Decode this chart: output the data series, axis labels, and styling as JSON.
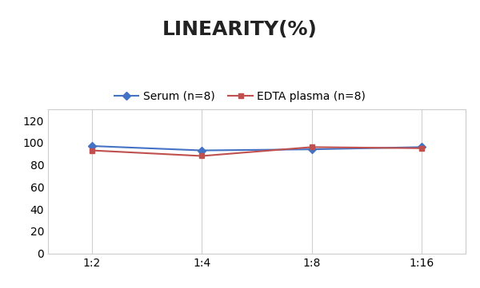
{
  "title": "LINEARITY(%)",
  "x_labels": [
    "1:2",
    "1:4",
    "1:8",
    "1:16"
  ],
  "serum_values": [
    97,
    93,
    94,
    96
  ],
  "edta_values": [
    93,
    88,
    96,
    95
  ],
  "serum_label": "Serum (n=8)",
  "edta_label": "EDTA plasma (n=8)",
  "serum_color": "#4472C4",
  "edta_color": "#C0504D",
  "ylim": [
    0,
    130
  ],
  "yticks": [
    0,
    20,
    40,
    60,
    80,
    100,
    120
  ],
  "title_fontsize": 18,
  "legend_fontsize": 10,
  "tick_fontsize": 10,
  "bg_color": "#FFFFFF",
  "grid_color": "#D0D0D0",
  "spine_color": "#CCCCCC"
}
